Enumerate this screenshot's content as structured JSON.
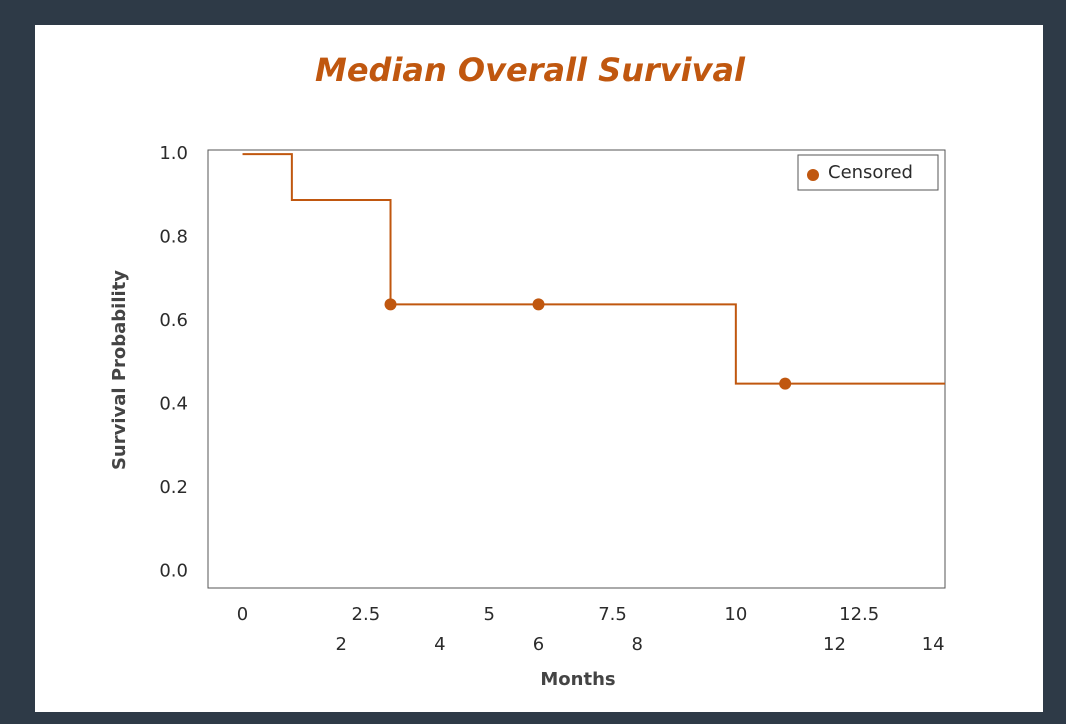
{
  "chart_data": {
    "type": "step",
    "title": "Median Overall Survival",
    "xlabel": "Months",
    "ylabel": "Survival Probability",
    "xlim": [
      -0.7,
      14.24
    ],
    "ylim": [
      -0.04,
      1.01
    ],
    "xticks": [
      0,
      2.5,
      5,
      7.5,
      10,
      12.5
    ],
    "xticks_row2": [
      2,
      4,
      6,
      8,
      12,
      14
    ],
    "yticks": [
      {
        "value": 0,
        "label": "0.0"
      },
      0.2,
      0.4,
      0.6,
      0.8,
      {
        "value": 1,
        "label": "1.0"
      }
    ],
    "series": [
      {
        "type": "step",
        "color": "#c0570f",
        "x": [
          0,
          1,
          3,
          10,
          14.24
        ],
        "values": [
          1,
          0.89,
          0.64,
          0.45,
          0.45
        ]
      },
      {
        "type": "scatter",
        "name": "Censored",
        "color": "#c0570f",
        "x": [
          3,
          6,
          11
        ],
        "values": [
          0.64,
          0.64,
          0.45
        ]
      }
    ],
    "legend": "upper right"
  }
}
